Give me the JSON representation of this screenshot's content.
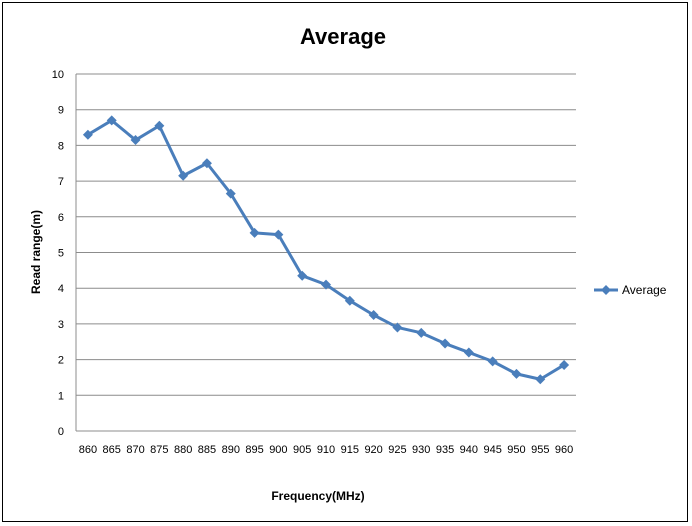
{
  "chart_data": {
    "type": "line",
    "title": "Average",
    "xlabel": "Frequency(MHz)",
    "ylabel": "Read range(m)",
    "categories": [
      "860",
      "865",
      "870",
      "875",
      "880",
      "885",
      "890",
      "895",
      "900",
      "905",
      "910",
      "915",
      "920",
      "925",
      "930",
      "935",
      "940",
      "945",
      "950",
      "955",
      "960"
    ],
    "series": [
      {
        "name": "Average",
        "color": "#4a7ebb",
        "values": [
          8.3,
          8.7,
          8.15,
          8.55,
          7.15,
          7.5,
          6.65,
          5.55,
          5.5,
          4.35,
          4.1,
          3.65,
          3.25,
          2.9,
          2.75,
          2.45,
          2.2,
          1.95,
          1.6,
          1.45,
          1.85
        ]
      }
    ],
    "ylim": [
      0,
      10
    ],
    "yticks": [
      "0",
      "1",
      "2",
      "3",
      "4",
      "5",
      "6",
      "7",
      "8",
      "9",
      "10"
    ],
    "grid": true,
    "legend": "right"
  }
}
